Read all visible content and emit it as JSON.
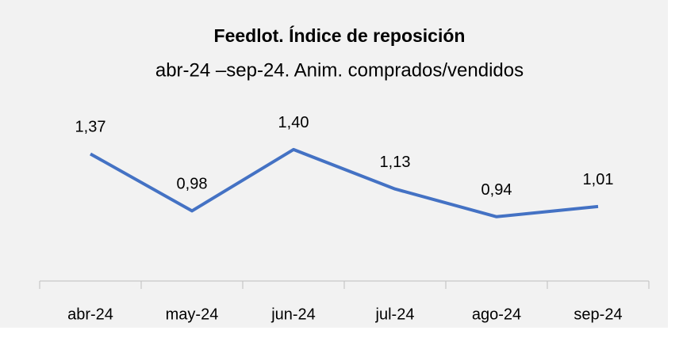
{
  "chart_data": {
    "type": "line",
    "title": "Feedlot. Índice de reposición",
    "subtitle": "abr-24 –sep-24. Anim. comprados/vendidos",
    "categories": [
      "abr-24",
      "may-24",
      "jun-24",
      "jul-24",
      "ago-24",
      "sep-24"
    ],
    "series": [
      {
        "name": "Índice de reposición",
        "color": "#4472c4",
        "values": [
          1.37,
          0.98,
          1.4,
          1.13,
          0.94,
          1.01
        ],
        "value_labels": [
          "1,37",
          "0,98",
          "1,40",
          "1,13",
          "0,94",
          "1,01"
        ]
      }
    ],
    "ylim": [
      0.5,
      1.6
    ]
  }
}
